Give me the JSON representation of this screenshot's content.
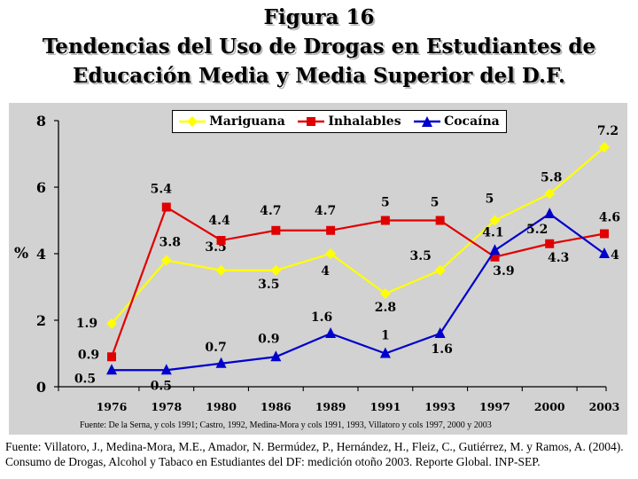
{
  "title": {
    "line1": "Figura 16",
    "line2": "Tendencias del Uso de Drogas en Estudiantes de",
    "line3": "Educación Media y Media Superior del D.F."
  },
  "chart_note": "Fuente: De la Serna, y cols 1991; Castro, 1992, Medina-Mora y cols 1991, 1993, Villatoro y cols 1997, 2000 y 2003",
  "footer": {
    "text": "Fuente: Villatoro, J., Medina-Mora, M.E., Amador, N. Bermúdez, P., Hernández, H., Fleiz, C., Gutiérrez, M. y Ramos, A. (2004). Consumo de Drogas, Alcohol y Tabaco en Estudiantes del DF: medición otoño 2003. Reporte Global. INP-SEP."
  },
  "colors": {
    "chart_background": "#d2d2d2",
    "mariguana": "#ffff00",
    "inhalables": "#e00000",
    "cocaina": "#0000cc"
  },
  "chart_data": {
    "type": "line",
    "title": "Tendencias del Uso de Drogas en Estudiantes de Educación Media y Media Superior del D.F.",
    "xlabel": "",
    "ylabel": "%",
    "categories": [
      "1976",
      "1978",
      "1980",
      "1986",
      "1989",
      "1991",
      "1993",
      "1997",
      "2000",
      "2003"
    ],
    "ylim": [
      0,
      8
    ],
    "yticks": [
      "0",
      "2",
      "4",
      "6",
      "8"
    ],
    "grid": false,
    "legend_position": "top",
    "series": [
      {
        "name": "Mariguana",
        "marker": "diamond",
        "values": [
          1.9,
          3.8,
          3.5,
          3.5,
          4,
          2.8,
          3.5,
          5,
          5.8,
          7.2
        ],
        "labels": [
          "1.9",
          "3.8",
          "3.5",
          "3.5",
          "4",
          "2.8",
          "3.5",
          "5",
          "5.8",
          "7.2"
        ]
      },
      {
        "name": "Inhalables",
        "marker": "square",
        "values": [
          0.9,
          5.4,
          4.4,
          4.7,
          4.7,
          5,
          5,
          3.9,
          4.3,
          4.6
        ],
        "labels": [
          "0.9",
          "5.4",
          "4.4",
          "4.7",
          "4.7",
          "5",
          "5",
          "3.9",
          "4.3",
          "4.6"
        ]
      },
      {
        "name": "Cocaína",
        "marker": "triangle",
        "values": [
          0.5,
          0.5,
          0.7,
          0.9,
          1.6,
          1,
          1.6,
          4.1,
          5.2,
          4
        ],
        "labels": [
          "0.5",
          "0.5",
          "0.7",
          "0.9",
          "1.6",
          "1",
          "1.6",
          "4.1",
          "5.2",
          "4"
        ]
      }
    ]
  }
}
